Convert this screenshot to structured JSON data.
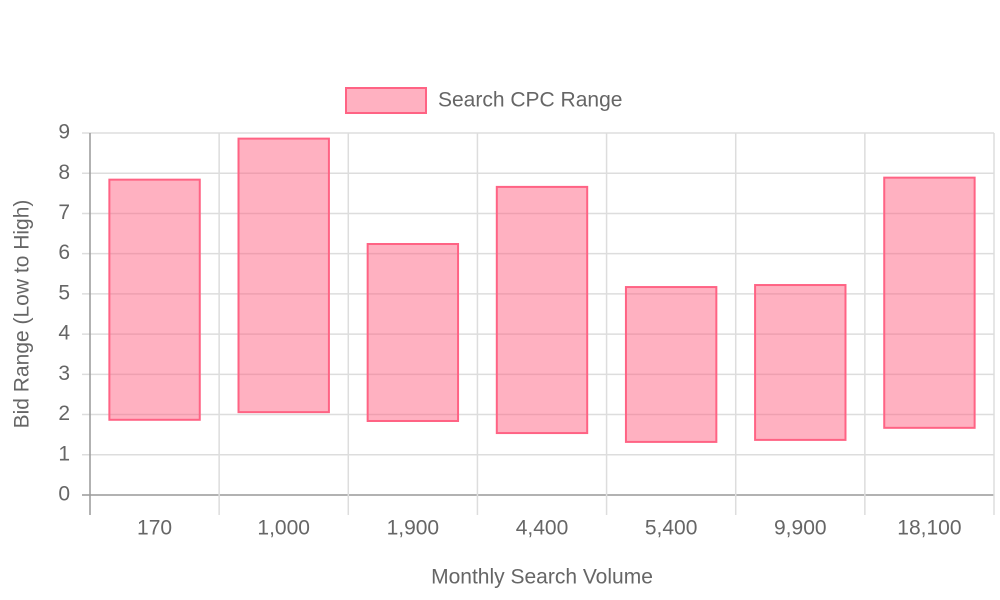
{
  "chart_data": {
    "type": "floating-bar",
    "x_label": "Monthly Search Volume",
    "y_label": "Bid Range (Low to High)",
    "categories": [
      "170",
      "1,000",
      "1,900",
      "4,400",
      "5,400",
      "9,900",
      "18,100"
    ],
    "series": [
      {
        "name": "Search CPC Range",
        "color": "#ff6384",
        "fill": "rgba(255,99,132,0.5)",
        "values": [
          [
            1.87,
            7.84
          ],
          [
            2.06,
            8.86
          ],
          [
            1.84,
            6.24
          ],
          [
            1.54,
            7.66
          ],
          [
            1.32,
            5.17
          ],
          [
            1.37,
            5.22
          ],
          [
            1.67,
            7.89
          ]
        ]
      }
    ],
    "ylim": [
      0,
      9
    ],
    "yticks": [
      0,
      1,
      2,
      3,
      4,
      5,
      6,
      7,
      8,
      9
    ],
    "grid": true,
    "legend": "top"
  }
}
